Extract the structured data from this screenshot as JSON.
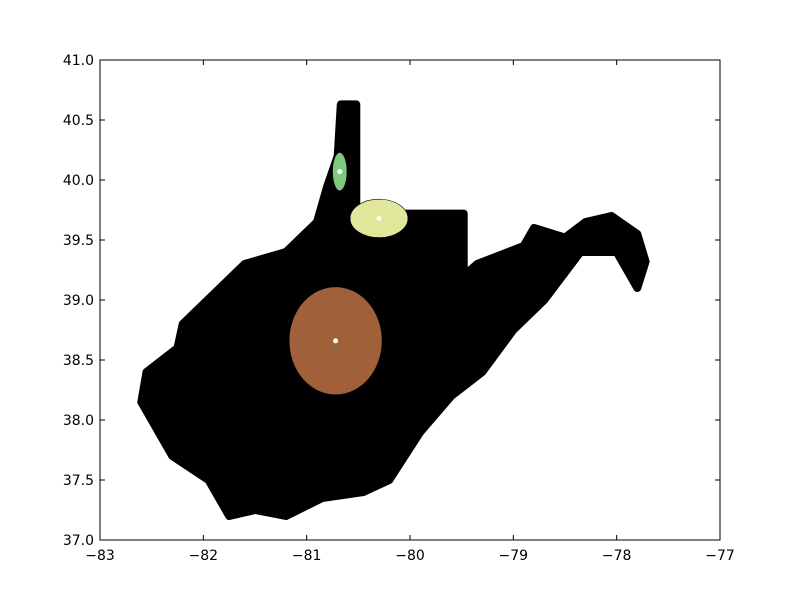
{
  "chart_data": {
    "type": "scatter",
    "title": "",
    "xlabel": "",
    "ylabel": "",
    "xlim": [
      -83,
      -77
    ],
    "ylim": [
      37.0,
      41.0
    ],
    "grid": false,
    "legend": "none",
    "x_ticks": [
      -83,
      -82,
      -81,
      -80,
      -79,
      -78,
      -77
    ],
    "y_ticks": [
      37.0,
      37.5,
      38.0,
      38.5,
      39.0,
      39.5,
      40.0,
      40.5,
      41.0
    ],
    "x_tick_labels": [
      "−83",
      "−82",
      "−81",
      "−80",
      "−79",
      "−78",
      "−77"
    ],
    "y_tick_labels": [
      "37.0",
      "37.5",
      "38.0",
      "38.5",
      "39.0",
      "39.5",
      "40.0",
      "40.5",
      "41.0"
    ],
    "background_points": {
      "color": "#000000",
      "outline": [
        [
          -80.67,
          40.63
        ],
        [
          -80.52,
          40.63
        ],
        [
          -80.52,
          39.72
        ],
        [
          -79.48,
          39.72
        ],
        [
          -79.48,
          39.2
        ],
        [
          -79.35,
          39.3
        ],
        [
          -78.9,
          39.45
        ],
        [
          -78.8,
          39.6
        ],
        [
          -78.5,
          39.52
        ],
        [
          -78.3,
          39.65
        ],
        [
          -78.05,
          39.7
        ],
        [
          -77.8,
          39.55
        ],
        [
          -77.72,
          39.32
        ],
        [
          -77.8,
          39.1
        ],
        [
          -78.0,
          39.4
        ],
        [
          -78.35,
          39.4
        ],
        [
          -78.7,
          39.0
        ],
        [
          -79.0,
          38.75
        ],
        [
          -79.3,
          38.4
        ],
        [
          -79.6,
          38.2
        ],
        [
          -79.9,
          37.9
        ],
        [
          -80.2,
          37.5
        ],
        [
          -80.45,
          37.4
        ],
        [
          -80.85,
          37.35
        ],
        [
          -81.2,
          37.2
        ],
        [
          -81.5,
          37.25
        ],
        [
          -81.75,
          37.2
        ],
        [
          -81.95,
          37.5
        ],
        [
          -82.3,
          37.7
        ],
        [
          -82.6,
          38.15
        ],
        [
          -82.55,
          38.4
        ],
        [
          -82.25,
          38.6
        ],
        [
          -82.2,
          38.8
        ],
        [
          -81.9,
          39.05
        ],
        [
          -81.6,
          39.3
        ],
        [
          -81.2,
          39.4
        ],
        [
          -80.9,
          39.65
        ],
        [
          -80.8,
          39.95
        ],
        [
          -80.7,
          40.2
        ]
      ]
    },
    "clusters": [
      {
        "color": "#7fc97f",
        "center": [
          -80.68,
          40.07
        ],
        "radius": [
          0.07,
          0.16
        ]
      },
      {
        "color": "#e0e69a",
        "center": [
          -80.3,
          39.68
        ],
        "radius": [
          0.28,
          0.16
        ]
      },
      {
        "color": "#a0603a",
        "center": [
          -80.72,
          38.66
        ],
        "radius": [
          0.45,
          0.45
        ]
      }
    ],
    "centroids": {
      "color": "#ffffff",
      "points": [
        [
          -80.68,
          40.07
        ],
        [
          -80.3,
          39.68
        ],
        [
          -80.72,
          38.66
        ]
      ]
    }
  }
}
